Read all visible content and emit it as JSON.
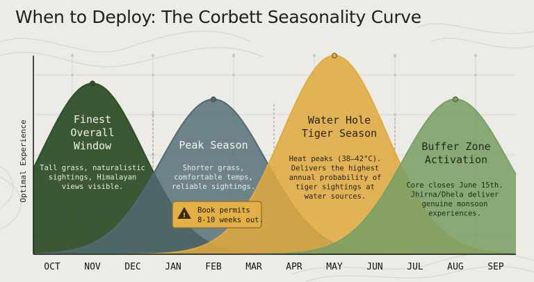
{
  "title": "When to Deploy: The Corbett Seasonality Curve",
  "chart_data": {
    "type": "area",
    "title": "When to Deploy: The Corbett Seasonality Curve",
    "xlabel": "",
    "ylabel": "Optimal Experience",
    "categories": [
      "OCT",
      "NOV",
      "DEC",
      "JAN",
      "FEB",
      "MAR",
      "APR",
      "MAY",
      "JUN",
      "JUL",
      "AUG",
      "SEP"
    ],
    "ylim": [
      0,
      100
    ],
    "grid": true,
    "series": [
      {
        "name": "Finest Overall Window",
        "peak_month": "NOV",
        "peak_index": 1,
        "peak_value": 86,
        "spread": 1.25,
        "color": "#2e4f27",
        "opacity": 0.94,
        "description": "Tall grass, naturalistic sightings, Himalayan views visible."
      },
      {
        "name": "Peak Season",
        "peak_month": "FEB",
        "peak_index": 4,
        "peak_value": 78,
        "spread": 1.3,
        "color": "#526a74",
        "opacity": 0.82,
        "description": "Shorter grass, comfortable temps, reliable sightings."
      },
      {
        "name": "Water Hole Tiger Season",
        "peak_month": "MAY",
        "peak_index": 7,
        "peak_value": 100,
        "spread": 1.3,
        "color": "#e0aa3e",
        "opacity": 0.86,
        "description": "Heat peaks (38-42°C). Delivers the highest annual probability of tiger sightings at water sources."
      },
      {
        "name": "Buffer Zone Activation",
        "peak_month": "AUG",
        "peak_index": 10,
        "peak_value": 78,
        "spread": 1.3,
        "color": "#78a064",
        "opacity": 0.86,
        "description": "Core closes June 15th. Jhirna/Dhela deliver genuine monsoon experiences."
      }
    ],
    "annotations": [
      {
        "text_lines": [
          "Book permits",
          "8-10 weeks out."
        ],
        "month": "FEB",
        "icon": "warning-icon"
      }
    ]
  },
  "labels": {
    "finest": [
      "Finest",
      "Overall",
      "Window"
    ],
    "finest_desc": [
      "Tall grass, naturalistic",
      "sightings, Himalayan",
      "views visible."
    ],
    "peak": [
      "Peak Season"
    ],
    "peak_desc": [
      "Shorter grass,",
      "comfortable temps,",
      "reliable sightings."
    ],
    "water": [
      "Water Hole",
      "Tiger Season"
    ],
    "water_desc": [
      "Heat peaks (38–42°C).",
      "Delivers the highest",
      "annual probability of",
      "tiger sightings at",
      "water sources."
    ],
    "buffer": [
      "Buffer Zone",
      "Activation"
    ],
    "buffer_desc": [
      "Core closes June 15th.",
      "Jhirna/Dhela deliver",
      "genuine monsoon",
      "experiences."
    ]
  }
}
